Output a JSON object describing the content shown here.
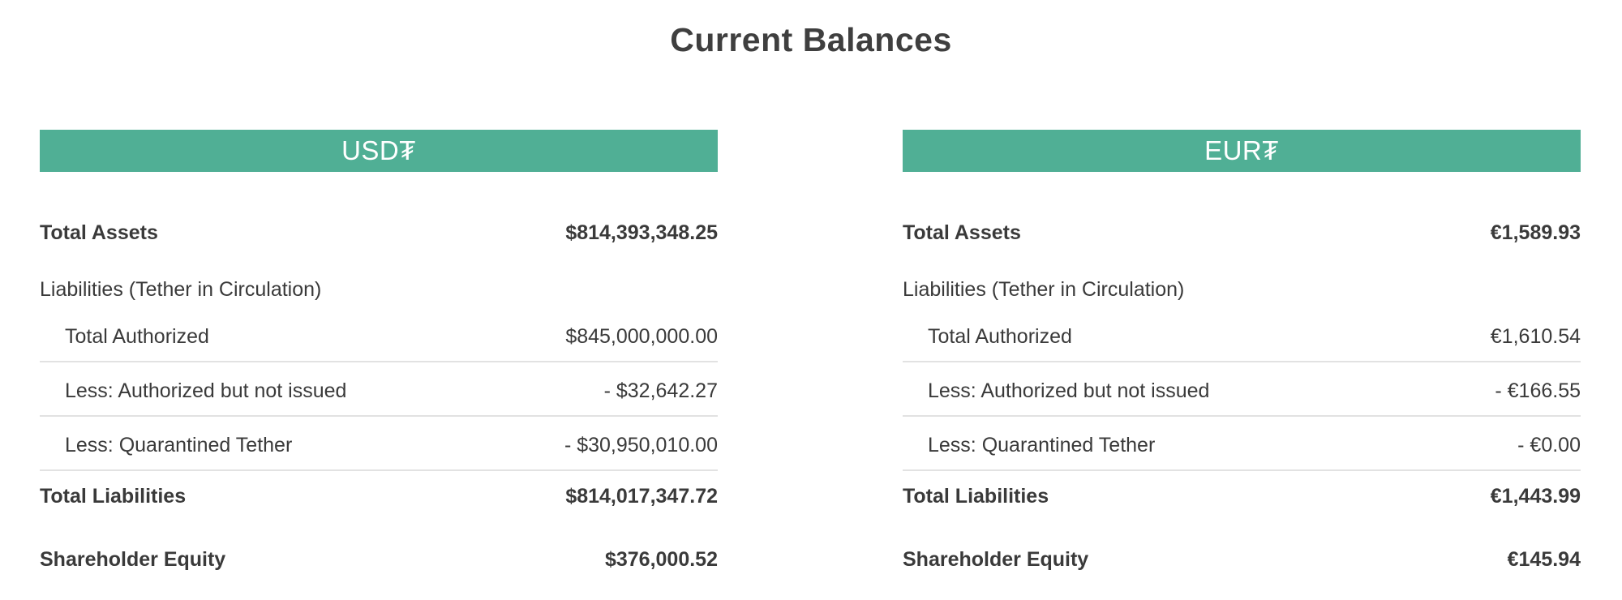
{
  "page": {
    "title": "Current Balances",
    "background_color": "#ffffff",
    "accent_green": "#50af95",
    "text_color": "#3a3a3a",
    "divider_color": "#e2e2e2"
  },
  "columns": [
    {
      "header": "USD₮",
      "total_assets": {
        "label": "Total Assets",
        "value": "$814,393,348.25"
      },
      "liabilities_section_label": "Liabilities (Tether in Circulation)",
      "sub_rows": [
        {
          "label": "Total Authorized",
          "value": "$845,000,000.00"
        },
        {
          "label": "Less: Authorized but not issued",
          "value": "- $32,642.27"
        },
        {
          "label": "Less: Quarantined Tether",
          "value": "- $30,950,010.00"
        }
      ],
      "total_liabilities": {
        "label": "Total Liabilities",
        "value": "$814,017,347.72"
      },
      "shareholder_equity": {
        "label": "Shareholder Equity",
        "value": "$376,000.52"
      }
    },
    {
      "header": "EUR₮",
      "total_assets": {
        "label": "Total Assets",
        "value": "€1,589.93"
      },
      "liabilities_section_label": "Liabilities (Tether in Circulation)",
      "sub_rows": [
        {
          "label": "Total Authorized",
          "value": "€1,610.54"
        },
        {
          "label": "Less: Authorized but not issued",
          "value": "- €166.55"
        },
        {
          "label": "Less: Quarantined Tether",
          "value": "- €0.00"
        }
      ],
      "total_liabilities": {
        "label": "Total Liabilities",
        "value": "€1,443.99"
      },
      "shareholder_equity": {
        "label": "Shareholder Equity",
        "value": "€145.94"
      }
    }
  ]
}
